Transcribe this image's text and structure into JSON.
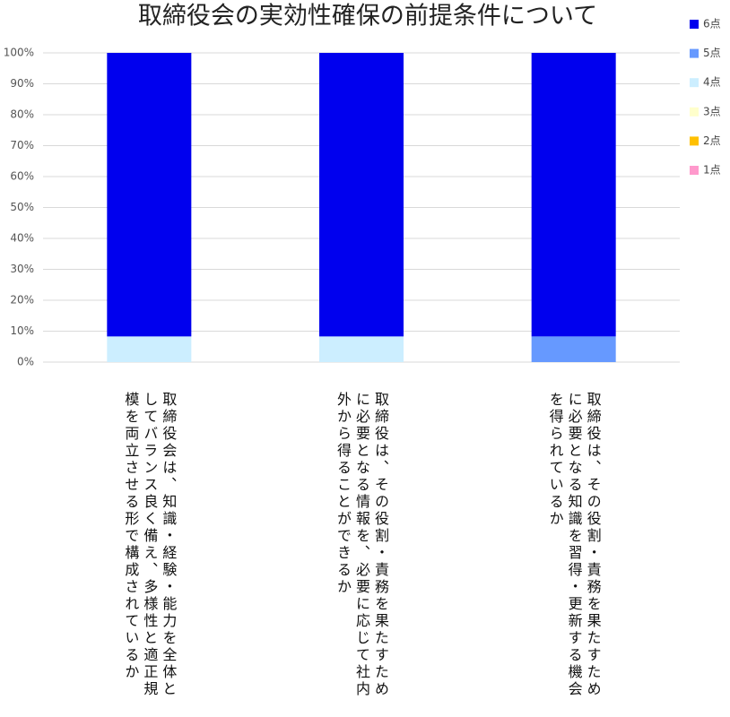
{
  "chart_data": {
    "type": "stacked_bar",
    "title": "取締役会の実効性確保の前提条件について",
    "categories": [
      "取締役会は、知識・経験・能力を全体としてバランス良く備え、多様性と適正規模を両立させる形で構成されているか",
      "取締役は、その役割・責務を果たすために必要となる情報を、必要に応じて社内外から得ることができるか",
      "取締役は、その役割・責務を果たすために必要となる知識を習得・更新する機会を得られているか"
    ],
    "series": [
      {
        "name": "1点",
        "color": "#ff99cc",
        "values": [
          0,
          0,
          0
        ]
      },
      {
        "name": "2点",
        "color": "#ffc000",
        "values": [
          0,
          0,
          0
        ]
      },
      {
        "name": "3点",
        "color": "#ffffcc",
        "values": [
          0,
          0,
          0
        ]
      },
      {
        "name": "4点",
        "color": "#cceeff",
        "values": [
          8.3,
          8.3,
          0
        ]
      },
      {
        "name": "5点",
        "color": "#6699ff",
        "values": [
          0,
          0,
          8.3
        ]
      },
      {
        "name": "6点",
        "color": "#0000ee",
        "values": [
          91.7,
          91.7,
          91.7
        ]
      }
    ],
    "ylim": [
      0,
      100
    ],
    "yticks": [
      {
        "value": 0,
        "label": "0%"
      },
      {
        "value": 10,
        "label": "10%"
      },
      {
        "value": 20,
        "label": "20%"
      },
      {
        "value": 30,
        "label": "30%"
      },
      {
        "value": 40,
        "label": "40%"
      },
      {
        "value": 50,
        "label": "50%"
      },
      {
        "value": 60,
        "label": "60%"
      },
      {
        "value": 70,
        "label": "70%"
      },
      {
        "value": 80,
        "label": "80%"
      },
      {
        "value": 90,
        "label": "90%"
      },
      {
        "value": 100,
        "label": "100%"
      }
    ],
    "grid": true,
    "legend": "right"
  }
}
